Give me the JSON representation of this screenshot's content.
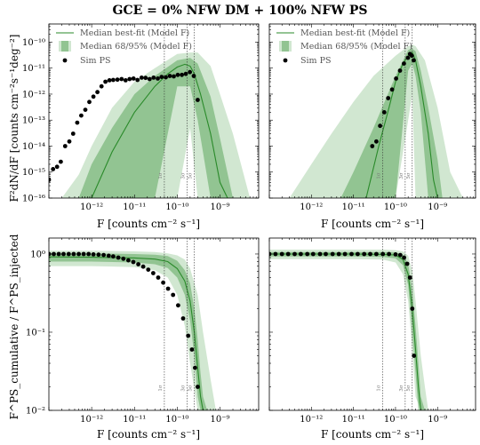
{
  "figure": {
    "title": "GCE = 0% NFW DM + 100% NFW PS",
    "legend": {
      "median_line": "Median best-fit (Model F)",
      "bands": "Median 68/95% (Model F)",
      "sim_points": "Sim PS"
    },
    "top_ylabel": "F²dN/dF [counts cm⁻²s⁻¹deg⁻²]",
    "bottom_ylabel": "F^PS_cumulative / F^PS_injected",
    "xlabel": "F [counts cm⁻² s⁻¹]",
    "vline_labels": [
      "1σ",
      "3σ",
      "5σ"
    ]
  },
  "chart_data": [
    {
      "type": "line",
      "panel": "top-left",
      "xscale": "log",
      "yscale": "log",
      "xlim": [
        1e-13,
        8e-09
      ],
      "ylim": [
        1e-16,
        5e-10
      ],
      "xticks": [
        1e-12,
        1e-11,
        1e-10,
        1e-09
      ],
      "yticks": [
        1e-16,
        1e-15,
        1e-14,
        1e-13,
        1e-12,
        1e-11,
        1e-10
      ],
      "vlines": [
        5e-11,
        1.7e-10,
        2.5e-10
      ],
      "median": {
        "x": [
          1e-12,
          3e-12,
          1e-11,
          3e-11,
          6e-11,
          1e-10,
          1.5e-10,
          2e-10,
          2.5e-10,
          3.5e-10,
          6e-10,
          1e-09,
          1.5e-09
        ],
        "y": [
          1e-16,
          6e-15,
          2e-13,
          2e-12,
          6e-12,
          1.1e-11,
          1.4e-11,
          1.2e-11,
          6e-12,
          1e-12,
          3e-14,
          4e-16,
          1e-16
        ]
      },
      "band68": {
        "x": [
          5e-13,
          1e-12,
          3e-12,
          1e-11,
          3e-11,
          1e-10,
          2e-10,
          3e-10,
          6e-10,
          1e-09,
          2e-09,
          3e-09
        ],
        "lo": [
          1e-16,
          1e-16,
          1e-16,
          1e-16,
          1e-16,
          2e-12,
          2e-12,
          1e-13,
          1e-16,
          1e-16,
          1e-16,
          1e-16
        ],
        "hi": [
          1e-16,
          2e-15,
          5e-14,
          1e-12,
          5e-12,
          2e-11,
          2.5e-11,
          1.5e-11,
          8e-13,
          2e-14,
          1e-16,
          1e-16
        ]
      },
      "band95": {
        "x": [
          2e-13,
          5e-13,
          1e-12,
          3e-12,
          1e-11,
          3e-11,
          1e-10,
          2e-10,
          3e-10,
          6e-10,
          1e-09,
          2e-09,
          5e-09
        ],
        "lo": [
          1e-16,
          1e-16,
          1e-16,
          1e-16,
          1e-16,
          1e-16,
          1e-16,
          5e-14,
          1e-16,
          1e-16,
          1e-16,
          1e-16,
          1e-16
        ],
        "hi": [
          1e-16,
          8e-16,
          1e-14,
          3e-13,
          3e-12,
          1e-11,
          3.5e-11,
          4e-11,
          4e-11,
          1.2e-11,
          1e-12,
          3e-14,
          1e-16
        ]
      },
      "sim": {
        "x": [
          1e-13,
          1.25e-13,
          1.55e-13,
          1.9e-13,
          2.4e-13,
          3e-13,
          3.7e-13,
          4.6e-13,
          5.7e-13,
          7.1e-13,
          8.8e-13,
          1.1e-12,
          1.36e-12,
          1.7e-12,
          2.1e-12,
          2.6e-12,
          3.2e-12,
          4e-12,
          5e-12,
          6.2e-12,
          7.7e-12,
          9.5e-12,
          1.18e-11,
          1.47e-11,
          1.82e-11,
          2.26e-11,
          2.8e-11,
          3.5e-11,
          4.3e-11,
          5.4e-11,
          6.7e-11,
          8.3e-11,
          1.03e-10,
          1.28e-10,
          1.58e-10,
          1.97e-10,
          2.44e-10,
          3e-10
        ],
        "y": [
          5e-16,
          1.3e-15,
          1.6e-15,
          2.5e-15,
          1e-14,
          1.5e-14,
          3e-14,
          8e-14,
          1.5e-13,
          2.5e-13,
          5e-13,
          8e-13,
          1.2e-12,
          2e-12,
          3e-12,
          3.4e-12,
          3.5e-12,
          3.6e-12,
          3.8e-12,
          3.4e-12,
          3.8e-12,
          4e-12,
          3.5e-12,
          4.3e-12,
          4.2e-12,
          3.8e-12,
          4.3e-12,
          4e-12,
          4.6e-12,
          4.4e-12,
          5e-12,
          4.8e-12,
          5.5e-12,
          5.5e-12,
          6e-12,
          7e-12,
          5e-12,
          6e-13
        ]
      }
    },
    {
      "type": "line",
      "panel": "top-right",
      "xscale": "log",
      "yscale": "log",
      "xlim": [
        1e-13,
        8e-09
      ],
      "ylim": [
        1e-16,
        5e-10
      ],
      "xticks": [
        1e-12,
        1e-11,
        1e-10,
        1e-09
      ],
      "vlines": [
        5e-11,
        1.7e-10,
        2.5e-10
      ],
      "median": {
        "x": [
          2e-11,
          4e-11,
          7e-11,
          1e-10,
          1.5e-10,
          2e-10,
          2.5e-10,
          3e-10,
          4e-10,
          6e-10,
          8e-10,
          1e-09
        ],
        "y": [
          1e-16,
          1e-14,
          3e-13,
          3e-12,
          1.5e-11,
          3e-11,
          4e-11,
          2e-11,
          2e-12,
          3e-14,
          5e-16,
          1e-16
        ]
      },
      "band68": {
        "x": [
          5e-12,
          1e-11,
          3e-11,
          1e-10,
          2e-10,
          2.5e-10,
          3e-10,
          4e-10,
          6e-10,
          1e-09,
          1.3e-09
        ],
        "lo": [
          1e-16,
          1e-16,
          1e-16,
          1e-16,
          8e-12,
          1.5e-11,
          5e-12,
          2e-13,
          1e-16,
          1e-16,
          1e-16
        ],
        "hi": [
          1e-16,
          1e-15,
          5e-14,
          5e-12,
          5e-11,
          5.5e-11,
          4.5e-11,
          8e-12,
          3e-13,
          3e-15,
          1e-16
        ]
      },
      "band95": {
        "x": [
          3e-13,
          1e-12,
          3e-12,
          1e-11,
          3e-11,
          1e-10,
          2e-10,
          2.5e-10,
          3e-10,
          5e-10,
          1e-09,
          2e-09,
          4e-09
        ],
        "lo": [
          1e-16,
          1e-16,
          1e-16,
          1e-16,
          1e-16,
          1e-16,
          1e-13,
          1e-12,
          1e-16,
          1e-16,
          1e-16,
          1e-16,
          1e-16
        ],
        "hi": [
          1e-16,
          2e-15,
          3e-14,
          5e-13,
          5e-12,
          3e-11,
          7e-11,
          8e-11,
          7e-11,
          2e-11,
          3e-13,
          1e-15,
          1e-16
        ]
      },
      "sim": {
        "x": [
          2.8e-11,
          3.5e-11,
          4.3e-11,
          5.4e-11,
          6.7e-11,
          8.3e-11,
          1.03e-10,
          1.28e-10,
          1.58e-10,
          1.97e-10,
          2.2e-10,
          2.44e-10,
          2.7e-10
        ],
        "y": [
          1e-14,
          1.5e-14,
          6e-14,
          2e-13,
          7e-13,
          1.5e-12,
          4e-12,
          8e-12,
          1.5e-11,
          2.5e-11,
          3.5e-11,
          3e-11,
          2e-11
        ]
      }
    },
    {
      "type": "line",
      "panel": "bottom-left",
      "xscale": "log",
      "yscale": "log",
      "xlim": [
        1e-13,
        8e-09
      ],
      "ylim": [
        0.01,
        1.6
      ],
      "xticks": [
        1e-12,
        1e-11,
        1e-10,
        1e-09
      ],
      "yticks": [
        0.01,
        0.1,
        1
      ],
      "vlines": [
        5e-11,
        1.7e-10,
        2.5e-10
      ],
      "median": {
        "x": [
          1e-13,
          1e-12,
          1e-11,
          3e-11,
          6e-11,
          1e-10,
          1.5e-10,
          2e-10,
          2.5e-10,
          3e-10,
          3.5e-10,
          4e-10
        ],
        "y": [
          0.92,
          0.91,
          0.89,
          0.86,
          0.8,
          0.65,
          0.45,
          0.25,
          0.1,
          0.035,
          0.015,
          0.01
        ]
      },
      "band68": {
        "x": [
          1e-13,
          1e-12,
          1e-11,
          3e-11,
          6e-11,
          1e-10,
          1.5e-10,
          2e-10,
          2.5e-10,
          3e-10,
          3.5e-10,
          4e-10,
          5e-10
        ],
        "lo": [
          0.8,
          0.8,
          0.78,
          0.74,
          0.66,
          0.5,
          0.3,
          0.14,
          0.05,
          0.015,
          0.01,
          0.01,
          0.01
        ],
        "hi": [
          1.02,
          1.02,
          1.0,
          0.98,
          0.94,
          0.82,
          0.62,
          0.42,
          0.2,
          0.08,
          0.03,
          0.015,
          0.01
        ]
      },
      "band95": {
        "x": [
          1e-13,
          1e-12,
          1e-11,
          3e-11,
          6e-11,
          1e-10,
          1.5e-10,
          2e-10,
          3e-10,
          4e-10,
          6e-10,
          8e-10
        ],
        "lo": [
          0.7,
          0.7,
          0.68,
          0.62,
          0.5,
          0.3,
          0.12,
          0.04,
          0.01,
          0.01,
          0.01,
          0.01
        ],
        "hi": [
          1.1,
          1.1,
          1.08,
          1.06,
          1.02,
          0.96,
          0.85,
          0.65,
          0.3,
          0.1,
          0.025,
          0.01
        ]
      },
      "sim": {
        "x": [
          1e-13,
          1.3e-13,
          1.7e-13,
          2.2e-13,
          2.9e-13,
          3.8e-13,
          5e-13,
          6.5e-13,
          8.5e-13,
          1.1e-12,
          1.45e-12,
          1.9e-12,
          2.5e-12,
          3.2e-12,
          4.2e-12,
          5.5e-12,
          7.2e-12,
          9.4e-12,
          1.23e-11,
          1.6e-11,
          2.1e-11,
          2.75e-11,
          3.6e-11,
          4.7e-11,
          6.1e-11,
          8e-11,
          1.05e-10,
          1.37e-10,
          1.8e-10,
          2.2e-10,
          2.6e-10,
          3e-10
        ],
        "y": [
          1.0,
          1.0,
          1.0,
          1.0,
          1.0,
          1.0,
          1.0,
          1.0,
          1.0,
          0.99,
          0.98,
          0.97,
          0.95,
          0.93,
          0.9,
          0.87,
          0.83,
          0.79,
          0.74,
          0.69,
          0.63,
          0.57,
          0.5,
          0.43,
          0.36,
          0.3,
          0.22,
          0.15,
          0.09,
          0.06,
          0.035,
          0.02
        ]
      }
    },
    {
      "type": "line",
      "panel": "bottom-right",
      "xscale": "log",
      "yscale": "log",
      "xlim": [
        1e-13,
        8e-09
      ],
      "ylim": [
        0.01,
        1.6
      ],
      "xticks": [
        1e-12,
        1e-11,
        1e-10,
        1e-09
      ],
      "vlines": [
        5e-11,
        1.7e-10,
        2.5e-10
      ],
      "median": {
        "x": [
          1e-13,
          1e-12,
          1e-11,
          5e-11,
          1e-10,
          1.5e-10,
          2e-10,
          2.5e-10,
          3e-10,
          3.5e-10,
          4e-10
        ],
        "y": [
          1.0,
          1.0,
          1.0,
          0.99,
          0.97,
          0.85,
          0.55,
          0.2,
          0.06,
          0.02,
          0.01
        ]
      },
      "band68": {
        "x": [
          1e-13,
          1e-12,
          1e-11,
          5e-11,
          1e-10,
          1.5e-10,
          2e-10,
          2.5e-10,
          3e-10,
          3.5e-10,
          4e-10,
          5e-10
        ],
        "lo": [
          0.93,
          0.93,
          0.93,
          0.92,
          0.88,
          0.72,
          0.4,
          0.1,
          0.03,
          0.01,
          0.01,
          0.01
        ],
        "hi": [
          1.06,
          1.06,
          1.06,
          1.06,
          1.05,
          0.98,
          0.75,
          0.35,
          0.12,
          0.04,
          0.015,
          0.01
        ]
      },
      "band95": {
        "x": [
          1e-13,
          1e-12,
          1e-11,
          5e-11,
          1e-10,
          1.5e-10,
          2e-10,
          2.5e-10,
          3e-10,
          4e-10,
          5e-10,
          6e-10
        ],
        "lo": [
          0.86,
          0.86,
          0.86,
          0.85,
          0.78,
          0.55,
          0.25,
          0.06,
          0.015,
          0.01,
          0.01,
          0.01
        ],
        "hi": [
          1.14,
          1.14,
          1.14,
          1.14,
          1.12,
          1.08,
          0.95,
          0.6,
          0.25,
          0.05,
          0.02,
          0.01
        ]
      },
      "sim": {
        "x": [
          1e-13,
          1.4e-13,
          2e-13,
          2.8e-13,
          4e-13,
          5.6e-13,
          8e-13,
          1.1e-12,
          1.6e-12,
          2.2e-12,
          3.2e-12,
          4.5e-12,
          6.3e-12,
          9e-12,
          1.26e-11,
          1.8e-11,
          2.5e-11,
          3.5e-11,
          5e-11,
          7e-11,
          1e-10,
          1.3e-10,
          1.6e-10,
          1.9e-10,
          2.2e-10,
          2.5e-10,
          2.75e-10
        ],
        "y": [
          1.0,
          1.0,
          1.0,
          1.0,
          1.0,
          1.0,
          1.0,
          1.0,
          1.0,
          1.0,
          1.0,
          1.0,
          1.0,
          1.0,
          1.0,
          1.0,
          1.0,
          1.0,
          1.0,
          1.0,
          0.99,
          0.97,
          0.9,
          0.75,
          0.5,
          0.2,
          0.05
        ]
      }
    }
  ]
}
